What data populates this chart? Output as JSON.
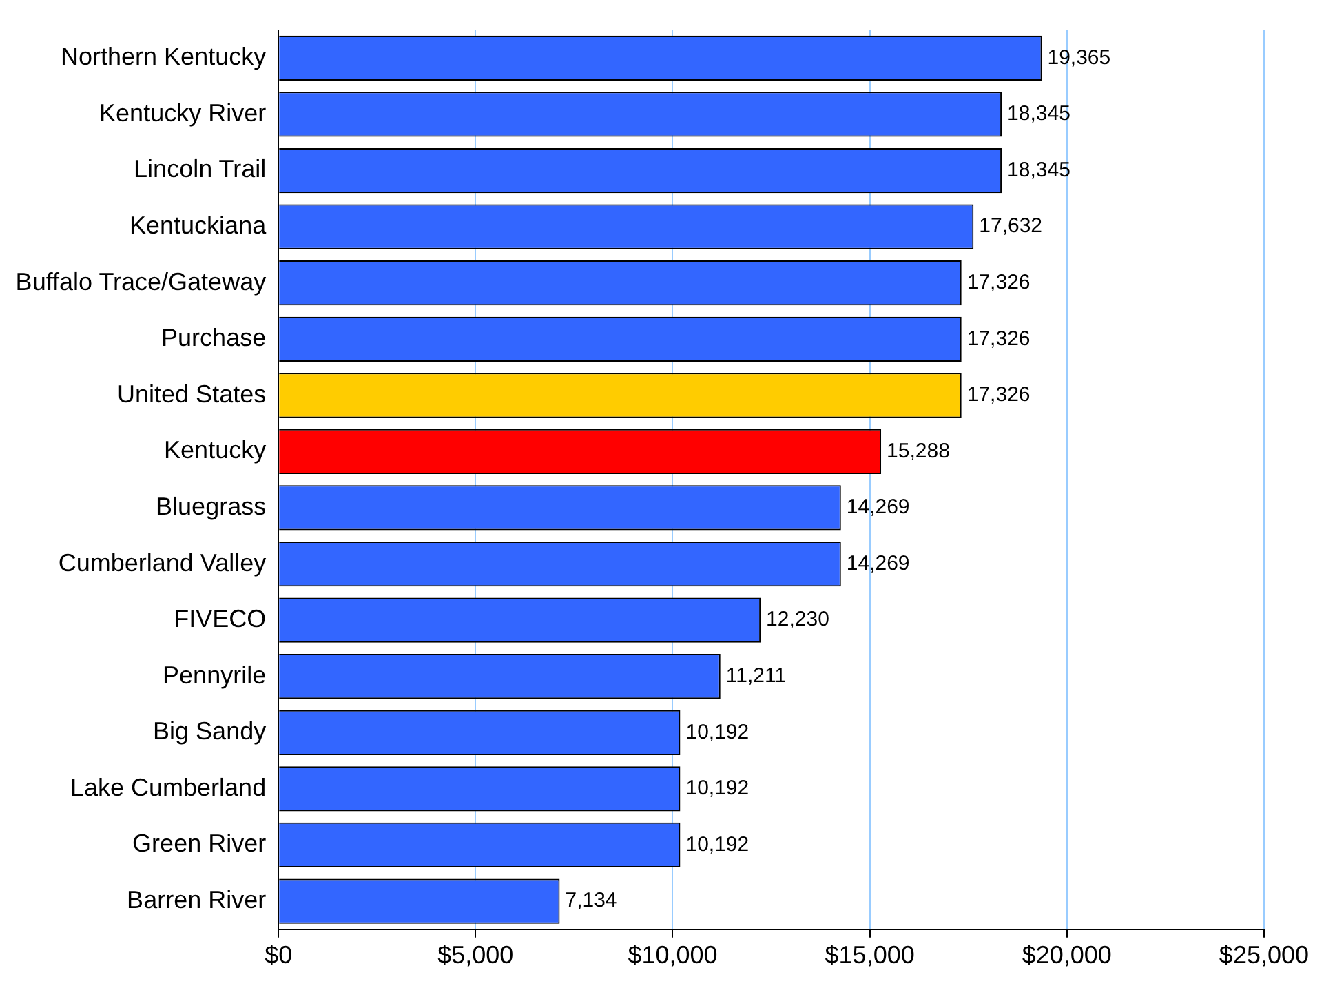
{
  "chart_data": {
    "type": "bar",
    "orientation": "horizontal",
    "categories": [
      "Northern Kentucky",
      "Kentucky River",
      "Lincoln Trail",
      "Kentuckiana",
      "Buffalo Trace/Gateway",
      "Purchase",
      "United States",
      "Kentucky",
      "Bluegrass",
      "Cumberland Valley",
      "FIVECO",
      "Pennyrile",
      "Big Sandy",
      "Lake Cumberland",
      "Green River",
      "Barren River"
    ],
    "values": [
      19365,
      18345,
      18345,
      17632,
      17326,
      17326,
      17326,
      15288,
      14269,
      14269,
      12230,
      11211,
      10192,
      10192,
      10192,
      7134
    ],
    "colors": [
      "#3366ff",
      "#3366ff",
      "#3366ff",
      "#3366ff",
      "#3366ff",
      "#3366ff",
      "#ffcc00",
      "#ff0000",
      "#3366ff",
      "#3366ff",
      "#3366ff",
      "#3366ff",
      "#3366ff",
      "#3366ff",
      "#3366ff",
      "#3366ff"
    ],
    "value_labels": [
      "19,365",
      "18,345",
      "18,345",
      "17,632",
      "17,326",
      "17,326",
      "17,326",
      "15,288",
      "14,269",
      "14,269",
      "12,230",
      "11,211",
      "10,192",
      "10,192",
      "10,192",
      "7,134"
    ],
    "xlim": [
      0,
      25000
    ],
    "xticks": [
      {
        "value": 0,
        "label": "$0"
      },
      {
        "value": 5000,
        "label": "$5,000"
      },
      {
        "value": 10000,
        "label": "$10,000"
      },
      {
        "value": 15000,
        "label": "$15,000"
      },
      {
        "value": 20000,
        "label": "$20,000"
      },
      {
        "value": 25000,
        "label": "$25,000"
      }
    ],
    "grid": "x",
    "legend": false
  }
}
